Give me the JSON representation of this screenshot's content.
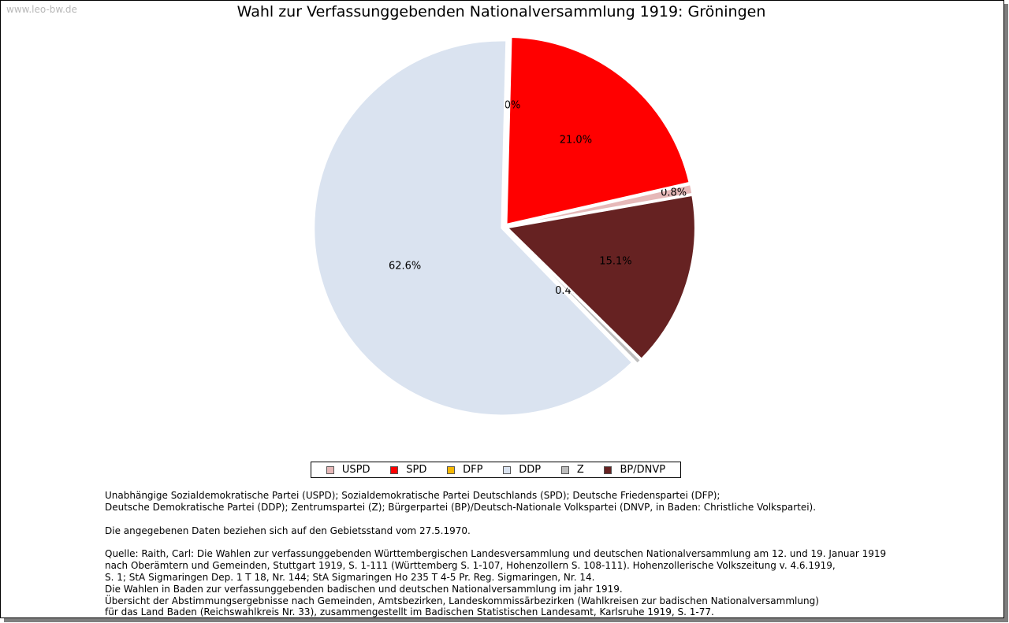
{
  "watermark": "www.leo-bw.de",
  "chart_data": {
    "type": "pie",
    "title": "Wahl zur Verfassunggebenden Nationalversammlung 1919: Gröningen",
    "slices": [
      {
        "name": "USPD",
        "value": 0.8,
        "label": "0.8%",
        "color": "#e6b8b8"
      },
      {
        "name": "SPD",
        "value": 21.0,
        "label": "21.0%",
        "color": "#ff0000"
      },
      {
        "name": "DFP",
        "value": 0.0,
        "label": "0.0%",
        "color": "#f5b700"
      },
      {
        "name": "DDP",
        "value": 62.6,
        "label": "62.6%",
        "color": "#dae3f0"
      },
      {
        "name": "Z",
        "value": 0.4,
        "label": "0.4%",
        "color": "#bdbdbd"
      },
      {
        "name": "BP/DNVP",
        "value": 15.1,
        "label": "15.1%",
        "color": "#662222"
      }
    ],
    "legend_position": "bottom"
  },
  "notes": {
    "parties": [
      "Unabhängige Sozialdemokratische Partei (USPD); Sozialdemokratische Partei Deutschlands (SPD); Deutsche Friedenspartei (DFP);",
      "Deutsche Demokratische Partei (DDP); Zentrumspartei (Z); Bürgerpartei (BP)/Deutsch-Nationale Volkspartei (DNVP, in Baden: Christliche Volkspartei)."
    ],
    "territory": "Die angegebenen Daten beziehen sich auf den Gebietsstand vom 27.5.1970.",
    "source": [
      "Quelle: Raith, Carl: Die Wahlen zur verfassunggebenden Württembergischen Landesversammlung und deutschen Nationalversammlung am 12. und 19. Januar 1919",
      "nach Oberämtern und Gemeinden, Stuttgart 1919, S. 1-111 (Württemberg S. 1-107, Hohenzollern S. 108-111). Hohenzollerische Volkszeitung v. 4.6.1919,",
      "S. 1; StA Sigmaringen Dep. 1 T 18, Nr. 144; StA Sigmaringen Ho 235 T 4-5 Pr. Reg. Sigmaringen, Nr. 14.",
      "Die Wahlen in Baden zur verfassunggebenden badischen und deutschen Nationalversammlung im jahr 1919.",
      "Übersicht der Abstimmungsergebnisse nach Gemeinden, Amtsbezirken, Landeskommissärbezirken (Wahlkreisen zur badischen Nationalversammlung)",
      "für das Land Baden (Reichswahlkreis Nr. 33), zusammengestellt im Badischen Statistischen Landesamt, Karlsruhe 1919, S. 1-77."
    ]
  }
}
